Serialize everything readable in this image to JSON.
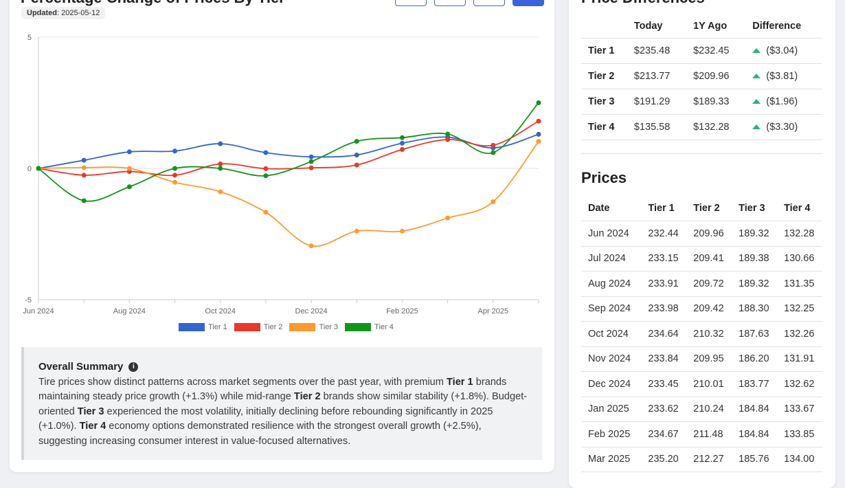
{
  "chart_panel": {
    "title": "Percentage Change of Prices By Tier",
    "updated_label": "Updated",
    "updated_date": "2025-05-12",
    "range_buttons": [
      "",
      "",
      "",
      ""
    ]
  },
  "chart_data": {
    "type": "line",
    "title": "",
    "xlabel": "",
    "ylabel": "",
    "ylim": [
      -5,
      5
    ],
    "y_ticks": [
      "5",
      "0",
      "-5"
    ],
    "x": [
      "Jun 2024",
      "Jul 2024",
      "Aug 2024",
      "Sep 2024",
      "Oct 2024",
      "Nov 2024",
      "Dec 2024",
      "Jan 2025",
      "Feb 2025",
      "Mar 2025",
      "Apr 2025",
      "May 2025"
    ],
    "x_tick_labels": [
      "Jun 2024",
      "Aug 2024",
      "Oct 2024",
      "Dec 2024",
      "Feb 2025",
      "Apr 2025"
    ],
    "grid": true,
    "legend_position": "bottom",
    "series": [
      {
        "name": "Tier 1",
        "color": "#3366cc",
        "values": [
          0,
          0.31,
          0.63,
          0.66,
          0.94,
          0.6,
          0.44,
          0.51,
          0.96,
          1.19,
          0.78,
          1.3
        ]
      },
      {
        "name": "Tier 2",
        "color": "#e8392b",
        "values": [
          0,
          -0.26,
          -0.12,
          -0.26,
          0.17,
          -0.01,
          0.02,
          0.13,
          0.72,
          1.1,
          0.88,
          1.8
        ]
      },
      {
        "name": "Tier 3",
        "color": "#ff9a2e",
        "values": [
          0,
          0.03,
          0,
          -0.53,
          -0.89,
          -1.67,
          -2.95,
          -2.39,
          -2.39,
          -1.89,
          -1.27,
          1.03
        ]
      },
      {
        "name": "Tier 4",
        "color": "#109618",
        "values": [
          0,
          -1.23,
          -0.7,
          0,
          0,
          -0.28,
          0.26,
          1.03,
          1.17,
          1.31,
          0.6,
          2.5
        ]
      }
    ]
  },
  "summary": {
    "heading": "Overall Summary",
    "info_icon": "info-icon",
    "p1": "Tire prices show distinct patterns across market segments over the past year, with premium ",
    "t1": "Tier 1",
    "p2": " brands maintaining steady price growth (+1.3%) while mid-range ",
    "t2": "Tier 2",
    "p3": " brands show similar stability (+1.8%). Budget-oriented ",
    "t3": "Tier 3",
    "p4": " experienced the most volatility, initially declining before rebounding significantly in 2025 (+1.0%). ",
    "t4": "Tier 4",
    "p5": " economy options demonstrated resilience with the strongest overall growth (+2.5%), suggesting increasing consumer interest in value-focused alternatives."
  },
  "differences": {
    "title": "Price Differences",
    "headers": [
      "",
      "Today",
      "1Y Ago",
      "Difference"
    ],
    "rows": [
      {
        "tier": "Tier 1",
        "today": "$235.48",
        "ago": "$232.45",
        "diff": "($3.04)"
      },
      {
        "tier": "Tier 2",
        "today": "$213.77",
        "ago": "$209.96",
        "diff": "($3.81)"
      },
      {
        "tier": "Tier 3",
        "today": "$191.29",
        "ago": "$189.33",
        "diff": "($1.96)"
      },
      {
        "tier": "Tier 4",
        "today": "$135.58",
        "ago": "$132.28",
        "diff": "($3.30)"
      }
    ],
    "arrow_color": "#2bb37a"
  },
  "prices": {
    "title": "Prices",
    "headers": [
      "Date",
      "Tier 1",
      "Tier 2",
      "Tier 3",
      "Tier 4"
    ],
    "rows": [
      [
        "Jun 2024",
        "232.44",
        "209.96",
        "189.32",
        "132.28"
      ],
      [
        "Jul 2024",
        "233.15",
        "209.41",
        "189.38",
        "130.66"
      ],
      [
        "Aug 2024",
        "233.91",
        "209.72",
        "189.32",
        "131.35"
      ],
      [
        "Sep 2024",
        "233.98",
        "209.42",
        "188.30",
        "132.25"
      ],
      [
        "Oct 2024",
        "234.64",
        "210.32",
        "187.63",
        "132.26"
      ],
      [
        "Nov 2024",
        "233.84",
        "209.95",
        "186.20",
        "131.91"
      ],
      [
        "Dec 2024",
        "233.45",
        "210.01",
        "183.77",
        "132.62"
      ],
      [
        "Jan 2025",
        "233.62",
        "210.24",
        "184.84",
        "133.67"
      ],
      [
        "Feb 2025",
        "234.67",
        "211.48",
        "184.84",
        "133.85"
      ],
      [
        "Mar 2025",
        "235.20",
        "212.27",
        "185.76",
        "134.00"
      ]
    ]
  }
}
